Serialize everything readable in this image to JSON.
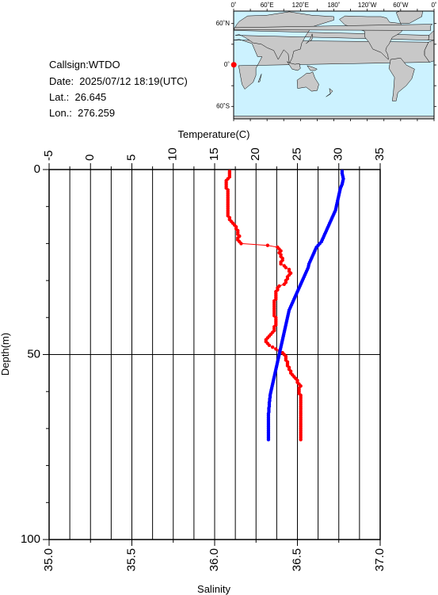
{
  "station": {
    "callsign": "Callsign:WTDO",
    "date": "Date:  2025/07/12 18:19(UTC)",
    "lat": "Lat.:  26.645",
    "lon": "Lon.:  276.259"
  },
  "map": {
    "lon_labels": [
      "0˚",
      "60˚E",
      "120˚E",
      "180˚",
      "120˚W",
      "60˚W",
      "0˚"
    ],
    "lat_labels": [
      "60˚N",
      "0˚",
      "60˚S"
    ],
    "marker_color": "#ff0000",
    "ocean_color": "#ccf2ff",
    "land_color": "#c8c8c8"
  },
  "chart_data": {
    "type": "scatter",
    "xlabel_top": "Temperature(C)",
    "xlabel_bottom": "Salinity",
    "ylabel": "Depth(m)",
    "temperature_ticks": [
      "-5",
      "0",
      "5",
      "10",
      "15",
      "20",
      "25",
      "30",
      "35"
    ],
    "salinity_ticks": [
      "35.0",
      "35.5",
      "36.0",
      "36.5",
      "37.0"
    ],
    "depth_ticks": [
      "0",
      "50",
      "100"
    ],
    "temperature_range": [
      -5,
      35
    ],
    "salinity_range": [
      35.0,
      37.0
    ],
    "depth_range": [
      0,
      100
    ],
    "grid": true,
    "series": [
      {
        "color": "#ff0000",
        "axis": "salinity",
        "connected": true,
        "depth": [
          0.5,
          1,
          1.5,
          2,
          2.5,
          3,
          3.5,
          4,
          4.5,
          5,
          5.5,
          6,
          6.5,
          7,
          7.5,
          8,
          8.5,
          9,
          9.5,
          10,
          10.5,
          11,
          11.5,
          12,
          12.5,
          13,
          13.5,
          14,
          14.5,
          15,
          15.5,
          16,
          16.5,
          17,
          17.5,
          18,
          18.5,
          19,
          19.5,
          20,
          20.5,
          21,
          21.5,
          22,
          22.5,
          23,
          23.5,
          24,
          24.5,
          25,
          25.5,
          26,
          26.5,
          27,
          27.5,
          28,
          28.5,
          29,
          29.5,
          30,
          30.5,
          31,
          31.5,
          32,
          32.5,
          33,
          33.5,
          34,
          34.5,
          35,
          35.5,
          36,
          36.5,
          37,
          37.5,
          38,
          38.5,
          39,
          39.5,
          40,
          40.5,
          41,
          41.5,
          42,
          42.5,
          43,
          43.5,
          44,
          44.5,
          45,
          45.5,
          46,
          46.5,
          47,
          47.5,
          48,
          48.5,
          49,
          49.5,
          50,
          50.5,
          51,
          51.5,
          52,
          52.5,
          53,
          53.5,
          54,
          54.5,
          55,
          55.5,
          56,
          56.5,
          57,
          57.5,
          58,
          58.5,
          59,
          59.5,
          60,
          60.5,
          61,
          61.5,
          62,
          62.5,
          63,
          63.5,
          64,
          64.5,
          65,
          65.5,
          66,
          66.5,
          67,
          67.5,
          68,
          68.5,
          69,
          69.5,
          70,
          70.5,
          71,
          71.5,
          72,
          72.5,
          73
        ],
        "values": [
          36.09,
          36.09,
          36.09,
          36.09,
          36.08,
          36.07,
          36.07,
          36.07,
          36.07,
          36.07,
          36.08,
          36.08,
          36.08,
          36.08,
          36.08,
          36.08,
          36.08,
          36.08,
          36.08,
          36.08,
          36.08,
          36.08,
          36.08,
          36.08,
          36.08,
          36.09,
          36.09,
          36.1,
          36.11,
          36.12,
          36.13,
          36.13,
          36.14,
          36.14,
          36.14,
          36.15,
          36.14,
          36.14,
          36.15,
          36.16,
          36.32,
          36.38,
          36.39,
          36.4,
          36.39,
          36.4,
          36.4,
          36.41,
          36.41,
          36.4,
          36.4,
          36.42,
          36.43,
          36.45,
          36.45,
          36.46,
          36.45,
          36.44,
          36.44,
          36.43,
          36.43,
          36.42,
          36.39,
          36.38,
          36.38,
          36.37,
          36.37,
          36.37,
          36.37,
          36.37,
          36.36,
          36.36,
          36.36,
          36.36,
          36.36,
          36.36,
          36.36,
          36.36,
          36.36,
          36.37,
          36.37,
          36.37,
          36.37,
          36.37,
          36.36,
          36.36,
          36.36,
          36.35,
          36.34,
          36.33,
          36.32,
          36.31,
          36.31,
          36.32,
          36.33,
          36.35,
          36.37,
          36.39,
          36.41,
          36.42,
          36.43,
          36.43,
          36.43,
          36.44,
          36.44,
          36.44,
          36.45,
          36.45,
          36.46,
          36.46,
          36.47,
          36.48,
          36.49,
          36.5,
          36.5,
          36.51,
          36.52,
          36.51,
          36.51,
          36.51,
          36.51,
          36.52,
          36.52,
          36.52,
          36.52,
          36.52,
          36.52,
          36.52,
          36.52,
          36.52,
          36.52,
          36.52,
          36.52,
          36.52,
          36.52,
          36.52,
          36.52,
          36.52,
          36.52,
          36.52,
          36.52,
          36.52,
          36.52,
          36.52,
          36.52,
          36.52
        ]
      },
      {
        "color": "#0000ff",
        "axis": "temperature",
        "connected": false,
        "depth": [
          0.5,
          1,
          1.5,
          2,
          2.5,
          3,
          3.5,
          4,
          4.5,
          5,
          5.5,
          6,
          6.5,
          7,
          7.5,
          8,
          8.5,
          9,
          9.5,
          10,
          10.5,
          11,
          11.5,
          12,
          12.5,
          13,
          13.5,
          14,
          14.5,
          15,
          15.5,
          16,
          16.5,
          17,
          17.5,
          18,
          18.5,
          19,
          19.5,
          20,
          20.5,
          21,
          21.5,
          22,
          22.5,
          23,
          23.5,
          24,
          24.5,
          25,
          25.5,
          26,
          26.5,
          27,
          27.5,
          28,
          28.5,
          29,
          29.5,
          30,
          30.5,
          31,
          31.5,
          32,
          32.5,
          33,
          33.5,
          34,
          34.5,
          35,
          35.5,
          36,
          36.5,
          37,
          37.5,
          38,
          38.5,
          39,
          39.5,
          40,
          40.5,
          41,
          41.5,
          42,
          42.5,
          43,
          43.5,
          44,
          44.5,
          45,
          45.5,
          46,
          46.5,
          47,
          47.5,
          48,
          48.5,
          49,
          49.5,
          50,
          50.5,
          51,
          51.5,
          52,
          52.5,
          53,
          53.5,
          54,
          54.5,
          55,
          55.5,
          56,
          56.5,
          57,
          57.5,
          58,
          58.5,
          59,
          59.5,
          60,
          60.5,
          61,
          61.5,
          62,
          62.5,
          63,
          63.5,
          64,
          64.5,
          65,
          65.5,
          66,
          66.5,
          67,
          67.5,
          68,
          68.5,
          69,
          69.5,
          70,
          70.5,
          71,
          71.5,
          72,
          72.5,
          73
        ],
        "values": [
          30.4,
          30.4,
          30.45,
          30.5,
          30.55,
          30.5,
          30.45,
          30.4,
          30.3,
          30.2,
          30.15,
          30.1,
          30.05,
          30.0,
          29.95,
          29.9,
          29.85,
          29.8,
          29.75,
          29.7,
          29.65,
          29.6,
          29.5,
          29.4,
          29.3,
          29.2,
          29.1,
          29.0,
          28.9,
          28.8,
          28.7,
          28.6,
          28.5,
          28.4,
          28.3,
          28.2,
          28.1,
          28.0,
          27.9,
          27.7,
          27.5,
          27.3,
          27.2,
          27.1,
          27.0,
          26.9,
          26.8,
          26.7,
          26.6,
          26.5,
          26.4,
          26.35,
          26.3,
          26.2,
          26.1,
          26.0,
          25.9,
          25.8,
          25.7,
          25.6,
          25.5,
          25.4,
          25.3,
          25.2,
          25.1,
          25.0,
          24.9,
          24.8,
          24.7,
          24.6,
          24.5,
          24.4,
          24.3,
          24.2,
          24.1,
          24.0,
          23.95,
          23.9,
          23.85,
          23.8,
          23.75,
          23.7,
          23.65,
          23.6,
          23.55,
          23.5,
          23.45,
          23.4,
          23.35,
          23.3,
          23.25,
          23.2,
          23.15,
          23.1,
          23.05,
          23.0,
          22.95,
          22.9,
          22.85,
          22.8,
          22.75,
          22.7,
          22.65,
          22.6,
          22.55,
          22.5,
          22.45,
          22.4,
          22.35,
          22.3,
          22.25,
          22.2,
          22.15,
          22.1,
          22.05,
          22.0,
          21.95,
          21.9,
          21.85,
          21.8,
          21.75,
          21.7,
          21.7,
          21.65,
          21.65,
          21.6,
          21.6,
          21.6,
          21.55,
          21.55,
          21.55,
          21.5,
          21.5,
          21.5,
          21.5,
          21.5,
          21.5,
          21.5,
          21.5,
          21.5,
          21.5,
          21.5,
          21.5,
          21.5,
          21.5,
          21.5
        ]
      }
    ]
  }
}
